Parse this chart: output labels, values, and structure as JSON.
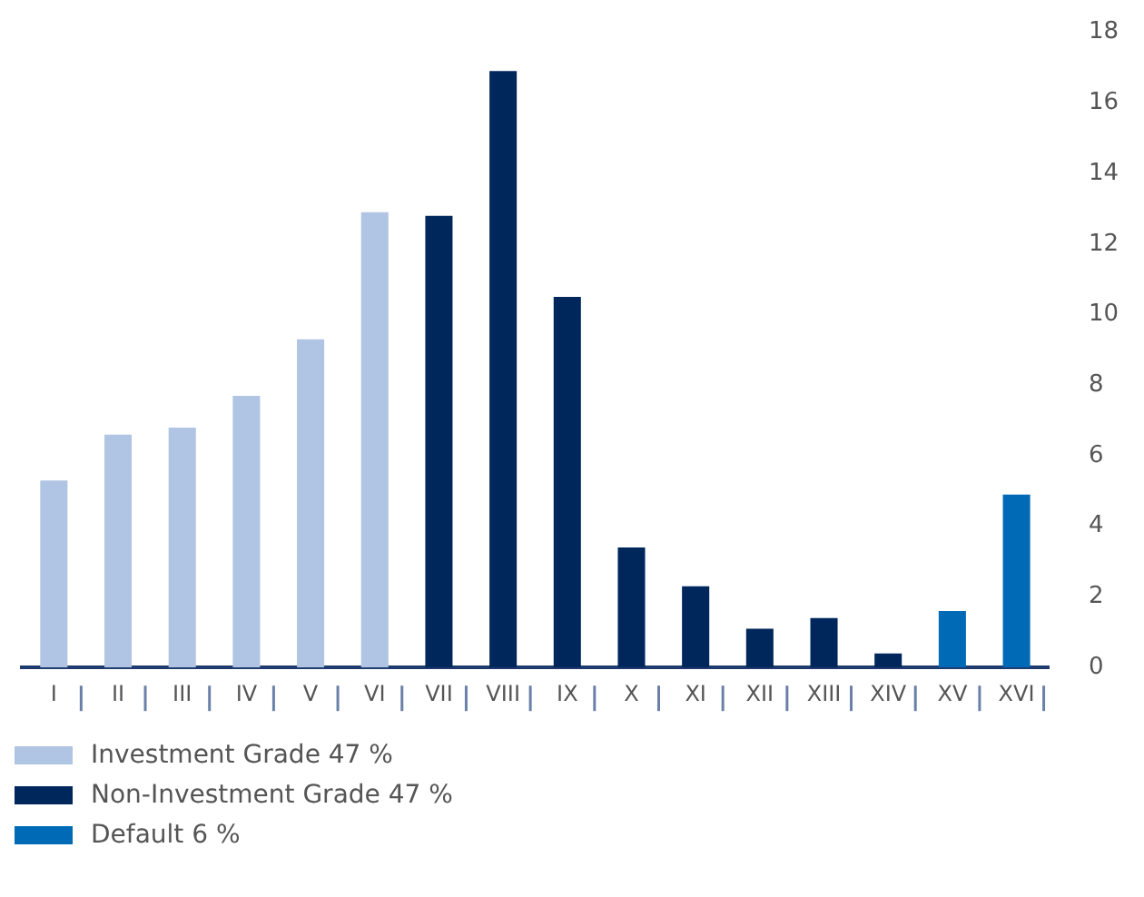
{
  "chart_data": {
    "type": "bar",
    "categories": [
      "I",
      "II",
      "III",
      "IV",
      "V",
      "VI",
      "VII",
      "VIII",
      "IX",
      "X",
      "XI",
      "XII",
      "XIII",
      "XIV",
      "XV",
      "XVI"
    ],
    "series": [
      {
        "name": "Investment Grade 47 %",
        "color": "#b0c4e4",
        "values": [
          5.3,
          6.6,
          6.8,
          7.7,
          9.3,
          12.9,
          null,
          null,
          null,
          null,
          null,
          null,
          null,
          null,
          null,
          null
        ]
      },
      {
        "name": "Non-Investment Grade 47 %",
        "color": "#00275c",
        "values": [
          null,
          null,
          null,
          null,
          null,
          null,
          12.8,
          16.9,
          10.5,
          3.4,
          2.3,
          1.1,
          1.4,
          0.4,
          null,
          null
        ]
      },
      {
        "name": "Default 6 %",
        "color": "#006ab6",
        "values": [
          null,
          null,
          null,
          null,
          null,
          null,
          null,
          null,
          null,
          null,
          null,
          null,
          null,
          null,
          1.6,
          4.9
        ]
      }
    ],
    "ylim": [
      0,
      18
    ],
    "yticks": [
      0,
      2,
      4,
      6,
      8,
      10,
      12,
      14,
      16,
      18
    ],
    "grid": false,
    "legend": "bottom left"
  }
}
